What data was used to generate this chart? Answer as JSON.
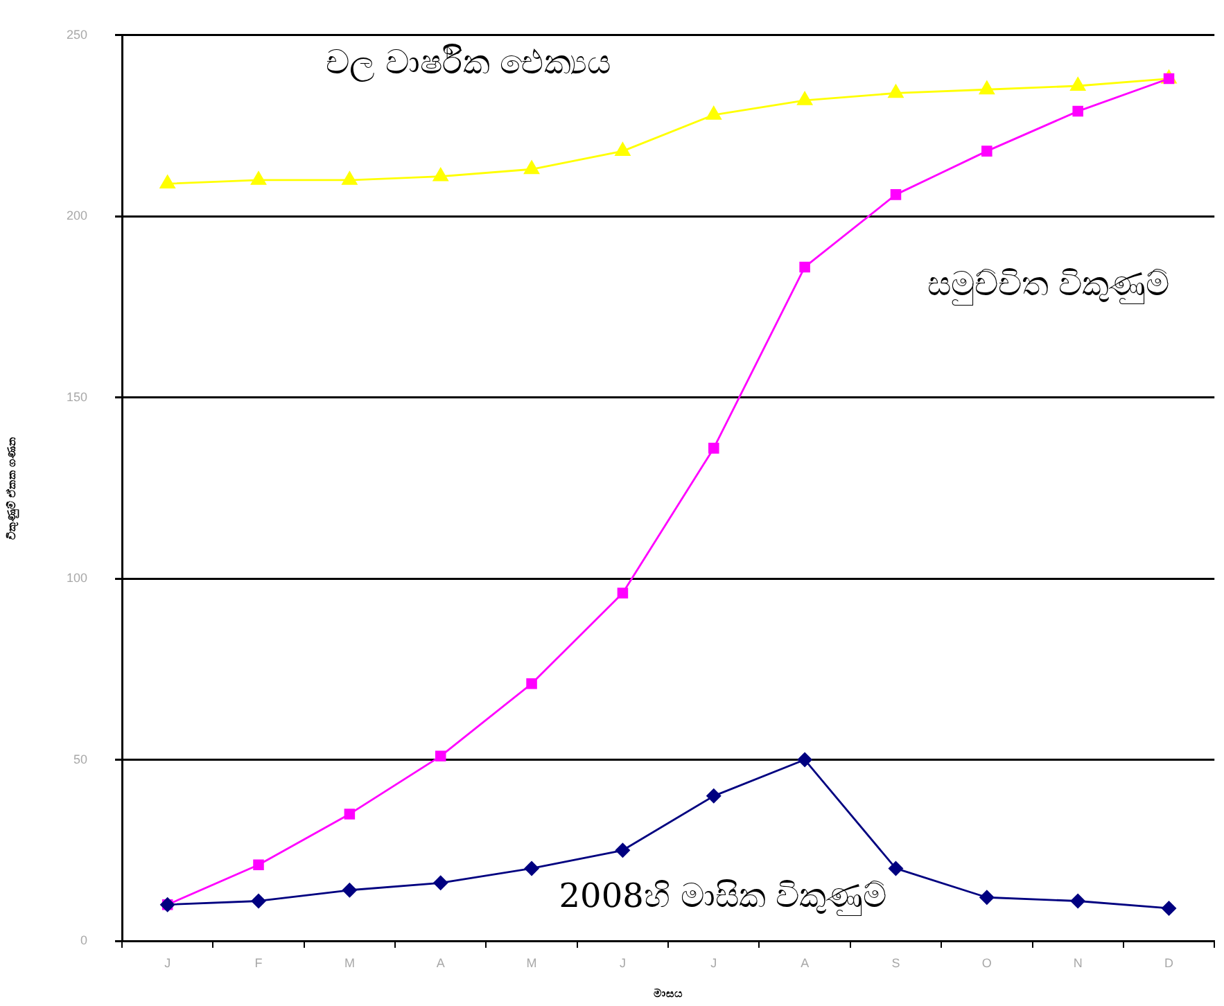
{
  "chart_data": {
    "type": "line",
    "xlabel": "මාසය",
    "ylabel": "විකුණුම් ඒකක ගණන",
    "categories": [
      "J",
      "F",
      "M",
      "A",
      "M",
      "J",
      "J",
      "A",
      "S",
      "O",
      "N",
      "D"
    ],
    "series": [
      {
        "name": "2008හි මාසික විකුණුම්",
        "color": "#000080",
        "marker": "diamond",
        "values": [
          10,
          11,
          14,
          16,
          20,
          25,
          40,
          50,
          20,
          12,
          11,
          9
        ]
      },
      {
        "name": "සමුච්චිත විකුණුම්",
        "color": "#ff00ff",
        "marker": "square",
        "values": [
          10,
          21,
          35,
          51,
          71,
          96,
          136,
          186,
          206,
          218,
          229,
          238
        ]
      },
      {
        "name": "චල වාර්ෂික ඓක්‍යය",
        "color": "#ffff00",
        "marker": "triangle",
        "values": [
          209,
          210,
          210,
          211,
          213,
          218,
          228,
          232,
          234,
          235,
          236,
          238
        ]
      }
    ],
    "ylim": [
      0,
      250
    ],
    "yticks": [
      0,
      50,
      100,
      150,
      200,
      250
    ],
    "grid": "y",
    "line_style": "solid"
  }
}
